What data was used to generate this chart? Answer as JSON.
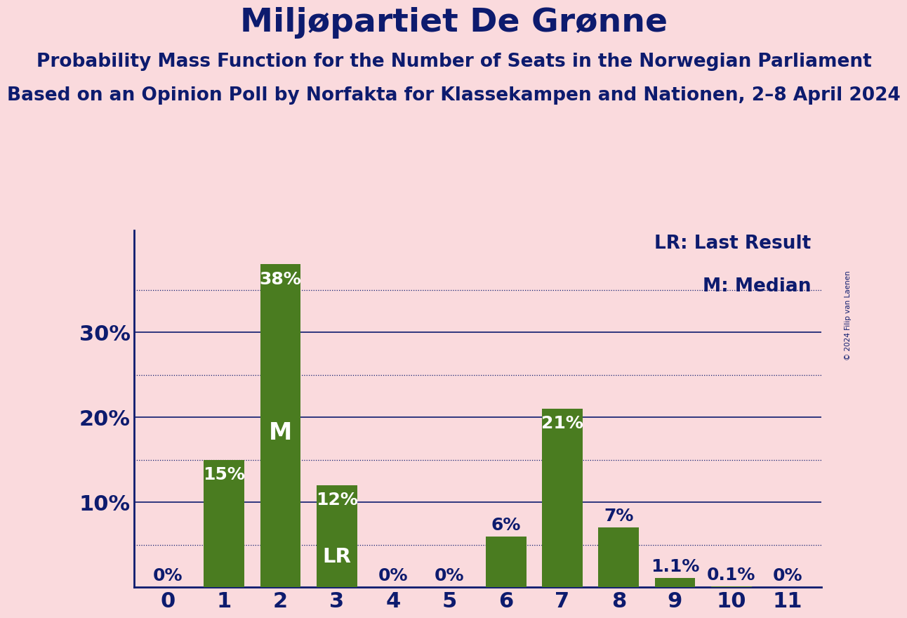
{
  "title": "Miljøpartiet De Grønne",
  "subtitle1": "Probability Mass Function for the Number of Seats in the Norwegian Parliament",
  "subtitle2": "Based on an Opinion Poll by Norfakta for Klassekampen and Nationen, 2–8 April 2024",
  "copyright": "© 2024 Filip van Laenen",
  "categories": [
    0,
    1,
    2,
    3,
    4,
    5,
    6,
    7,
    8,
    9,
    10,
    11
  ],
  "values": [
    0.0,
    15.0,
    38.0,
    12.0,
    0.0,
    0.0,
    6.0,
    21.0,
    7.0,
    1.1,
    0.1,
    0.0
  ],
  "bar_color": "#4a7c20",
  "background_color": "#fadadd",
  "text_color": "#0d1b6e",
  "label_color_outside": "#0d1b6e",
  "label_color_inside": "#ffffff",
  "bar_labels": [
    "0%",
    "15%",
    "38%",
    "12%",
    "0%",
    "0%",
    "6%",
    "21%",
    "7%",
    "1.1%",
    "0.1%",
    "0%"
  ],
  "lr_bar": 3,
  "median_bar": 2,
  "yticks": [
    10,
    20,
    30
  ],
  "ytick_labels": [
    "10%",
    "20%",
    "30%"
  ],
  "minor_yticks": [
    5,
    15,
    25,
    35
  ],
  "ylim": [
    0,
    42
  ],
  "legend_lr": "LR: Last Result",
  "legend_m": "M: Median",
  "title_fontsize": 34,
  "subtitle_fontsize": 19,
  "axis_label_fontsize": 22,
  "bar_label_fontsize": 18,
  "legend_fontsize": 19,
  "inside_threshold": 8
}
